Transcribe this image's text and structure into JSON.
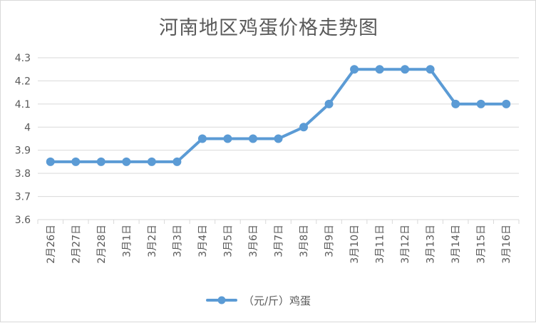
{
  "chart_data": {
    "type": "line",
    "title": "河南地区鸡蛋价格走势图",
    "xlabel": "",
    "ylabel": "",
    "categories": [
      "2月26日",
      "2月27日",
      "2月28日",
      "3月1日",
      "3月2日",
      "3月3日",
      "3月4日",
      "3月5日",
      "3月6日",
      "3月7日",
      "3月8日",
      "3月9日",
      "3月10日",
      "3月11日",
      "3月12日",
      "3月13日",
      "3月14日",
      "3月15日",
      "3月16日"
    ],
    "series": [
      {
        "name": "（元/斤）鸡蛋",
        "values": [
          3.85,
          3.85,
          3.85,
          3.85,
          3.85,
          3.85,
          3.95,
          3.95,
          3.95,
          3.95,
          4.0,
          4.1,
          4.25,
          4.25,
          4.25,
          4.25,
          4.1,
          4.1,
          4.1
        ]
      }
    ],
    "ylim": [
      3.6,
      4.3
    ],
    "yticks": [
      "3.6",
      "3.7",
      "3.8",
      "3.9",
      "4",
      "4.1",
      "4.2",
      "4.3"
    ],
    "grid": true,
    "legend": "bottom",
    "colors": {
      "line": "#5b9bd5",
      "grid": "#d9d9d9",
      "text": "#595959"
    }
  }
}
